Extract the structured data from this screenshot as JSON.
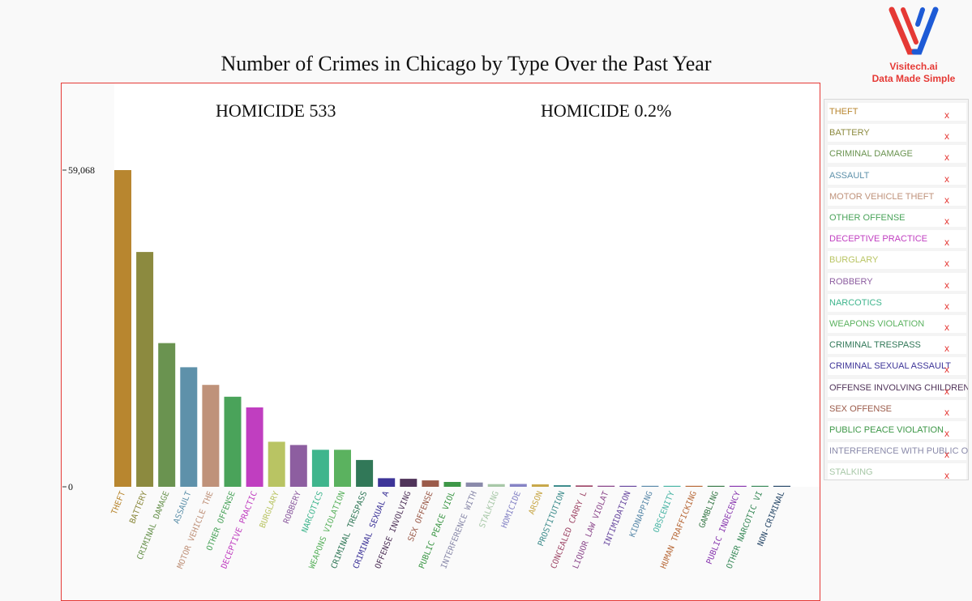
{
  "brand": {
    "name": "Visitech.ai",
    "tagline": "Data Made Simple"
  },
  "remove_symbol": "x",
  "colors": {
    "THEFT": "#b8862f",
    "BATTERY": "#8c8a3f",
    "CRIMINAL DAMAGE": "#6a9350",
    "ASSAULT": "#5e91aa",
    "MOTOR VEHICLE THEFT": "#bf927a",
    "OTHER OFFENSE": "#4aa35a",
    "DECEPTIVE PRACTICE": "#c03ec0",
    "BURGLARY": "#b9c463",
    "ROBBERY": "#8d5ea0",
    "NARCOTICS": "#3fb58d",
    "WEAPONS VIOLATION": "#5bb25f",
    "CRIMINAL TRESPASS": "#317858",
    "CRIMINAL SEXUAL ASSAULT": "#3d3498",
    "OFFENSE INVOLVING CHILDREN": "#50345a",
    "SEX OFFENSE": "#9b5b4a",
    "PUBLIC PEACE VIOLATION": "#3d9747",
    "INTERFERENCE WITH PUBLIC OFFICER": "#8a8aaa",
    "STALKING": "#a8c8a8",
    "HOMICIDE": "#8583c5",
    "ARSON": "#c8a84a",
    "PROSTITUTION": "#3f8d8d",
    "CONCEALED CARRY LICENSE VIOLATION": "#a04a6a",
    "LIQUOR LAW VIOLATION": "#8d4a8d",
    "INTIMIDATION": "#6a4aa0",
    "KIDNAPPING": "#5a8aaa",
    "OBSCENITY": "#4ab5a5",
    "HUMAN TRAFFICKING": "#b86a3a",
    "GAMBLING": "#3a7a4a",
    "PUBLIC INDECENCY": "#8a3ab0",
    "OTHER NARCOTIC VIOLATION": "#3a8a5a",
    "NON-CRIMINAL": "#2a4a6a"
  },
  "chart_data": {
    "type": "bar",
    "title": "Number of Crimes in Chicago by Type Over the Past Year",
    "summary": {
      "count_text": "HOMICIDE  533",
      "share_text": "HOMICIDE  0.2%"
    },
    "yticks": [
      {
        "value": 0,
        "label": "0"
      },
      {
        "value": 59068,
        "label": "59,068"
      }
    ],
    "ylim": [
      0,
      59068
    ],
    "tick_labels": [
      "THEFT",
      "BATTERY",
      "CRIMINAL DAMAGE",
      "ASSAULT",
      "MOTOR VEHICLE THE",
      "OTHER OFFENSE",
      "DECEPTIVE PRACTIC",
      "BURGLARY",
      "ROBBERY",
      "NARCOTICS",
      "WEAPONS VIOLATION",
      "CRIMINAL TRESPASS",
      "CRIMINAL SEXUAL A",
      "OFFENSE INVOLVING",
      "SEX OFFENSE",
      "PUBLIC PEACE VIOL",
      "INTERFERENCE WITH",
      "STALKING",
      "HOMICIDE",
      "ARSON",
      "PROSTITUTION",
      "CONCEALED CARRY L",
      "LIQUOR LAW VIOLAT",
      "INTIMIDATION",
      "KIDNAPPING",
      "OBSCENITY",
      "HUMAN TRAFFICKING",
      "GAMBLING",
      "PUBLIC INDECENCY",
      "OTHER NARCOTIC VI",
      "NON-CRIMINAL"
    ],
    "categories": [
      "THEFT",
      "BATTERY",
      "CRIMINAL DAMAGE",
      "ASSAULT",
      "MOTOR VEHICLE THEFT",
      "OTHER OFFENSE",
      "DECEPTIVE PRACTICE",
      "BURGLARY",
      "ROBBERY",
      "NARCOTICS",
      "WEAPONS VIOLATION",
      "CRIMINAL TRESPASS",
      "CRIMINAL SEXUAL ASSAULT",
      "OFFENSE INVOLVING CHILDREN",
      "SEX OFFENSE",
      "PUBLIC PEACE VIOLATION",
      "INTERFERENCE WITH PUBLIC OFFICER",
      "STALKING",
      "HOMICIDE",
      "ARSON",
      "PROSTITUTION",
      "CONCEALED CARRY LICENSE VIOLATION",
      "LIQUOR LAW VIOLATION",
      "INTIMIDATION",
      "KIDNAPPING",
      "OBSCENITY",
      "HUMAN TRAFFICKING",
      "GAMBLING",
      "PUBLIC INDECENCY",
      "OTHER NARCOTIC VIOLATION",
      "NON-CRIMINAL"
    ],
    "values": [
      59068,
      43800,
      26800,
      22300,
      19000,
      16800,
      14800,
      8400,
      7800,
      6900,
      6900,
      5000,
      1600,
      1500,
      1200,
      900,
      800,
      500,
      533,
      450,
      300,
      250,
      200,
      150,
      130,
      100,
      60,
      40,
      30,
      20,
      10
    ]
  },
  "legend": [
    "THEFT",
    "BATTERY",
    "CRIMINAL DAMAGE",
    "ASSAULT",
    "MOTOR VEHICLE THEFT",
    "OTHER OFFENSE",
    "DECEPTIVE PRACTICE",
    "BURGLARY",
    "ROBBERY",
    "NARCOTICS",
    "WEAPONS VIOLATION",
    "CRIMINAL TRESPASS",
    "CRIMINAL SEXUAL ASSAULT",
    "OFFENSE INVOLVING CHILDREN",
    "SEX OFFENSE",
    "PUBLIC PEACE VIOLATION",
    "INTERFERENCE WITH PUBLIC OFFICER",
    "STALKING"
  ]
}
